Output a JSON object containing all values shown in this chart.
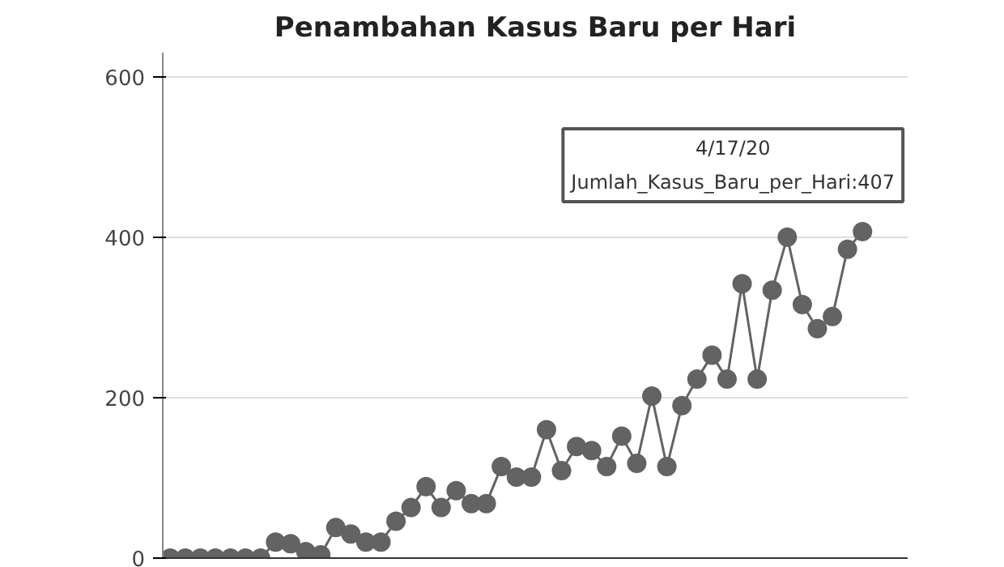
{
  "chart_data": {
    "type": "line",
    "title": "Penambahan Kasus Baru per Hari",
    "categories": [
      null,
      null,
      null,
      null,
      null,
      null,
      null,
      null,
      null,
      null,
      null,
      null,
      null,
      null,
      null,
      null,
      null,
      null,
      null,
      null,
      null,
      null,
      null,
      null,
      null,
      null,
      null,
      null,
      null,
      null,
      null,
      null,
      null,
      null,
      null,
      null,
      null,
      null,
      null,
      null,
      null,
      null,
      null,
      null,
      null,
      null,
      null
    ],
    "series": [
      {
        "color": "#636363",
        "values": [
          0,
          0,
          0,
          0,
          0,
          0,
          0,
          20,
          18,
          8,
          4,
          38,
          30,
          20,
          20,
          46,
          63,
          89,
          63,
          84,
          68,
          68,
          114,
          101,
          101,
          160,
          109,
          139,
          134,
          114,
          152,
          118,
          202,
          114,
          190,
          223,
          253,
          223,
          342,
          223,
          334,
          400,
          316,
          286,
          301,
          385,
          407
        ]
      }
    ],
    "ylim": [
      0,
      630
    ],
    "yticks": [
      0,
      200,
      400,
      600
    ],
    "grid": "y",
    "marker": "circle",
    "line_style": "solid",
    "tick_labels": "y",
    "annotations": [
      "4/17/20\nJumlah_Kasus_Baru_per_Hari:407"
    ]
  }
}
